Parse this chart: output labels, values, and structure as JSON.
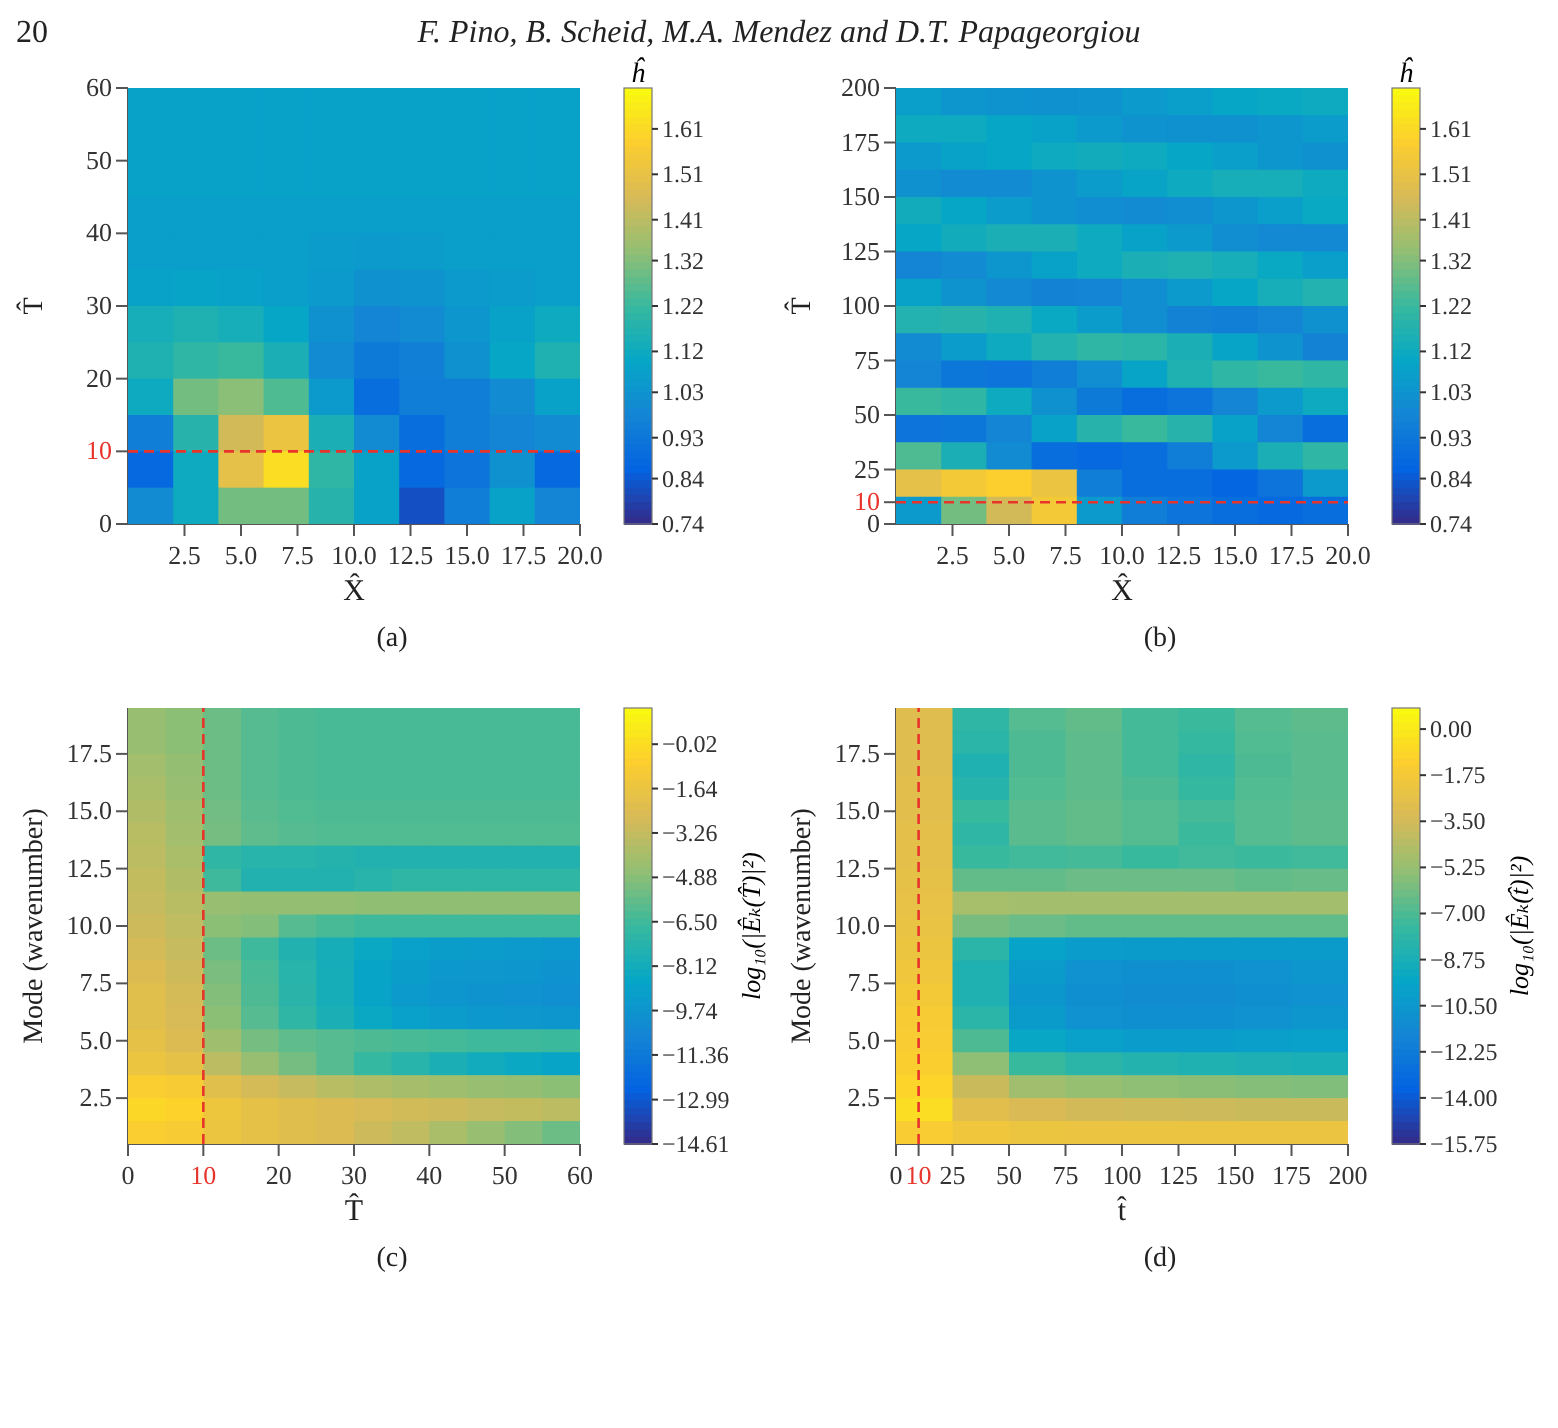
{
  "chart_data": [
    {
      "type": "heatmap",
      "annotations": [
        "20",
        "F. Pino, B. Scheid, M.A. Mendez and D.T. Papageorgiou",
        "(a)"
      ],
      "xlabel": "X̂",
      "ylabel": "T̂",
      "clabel": "ĥ",
      "xlim": [
        0,
        20
      ],
      "xticks": [
        2.5,
        {
          "value": 5,
          "label": "5.0"
        },
        7.5,
        {
          "value": 10,
          "label": "10.0"
        },
        12.5,
        {
          "value": 15,
          "label": "15.0"
        },
        17.5,
        {
          "value": 20,
          "label": "20.0"
        }
      ],
      "ylim": [
        0,
        60
      ],
      "yticks": [
        0,
        10,
        20,
        30,
        40,
        50,
        60
      ],
      "clim": [
        0.74,
        1.7
      ],
      "cticks": [
        0.74,
        0.84,
        0.93,
        1.03,
        1.12,
        1.22,
        1.32,
        1.41,
        1.51,
        1.61
      ],
      "ref_lines": [
        {
          "axis": "y",
          "value": 10,
          "color": "#e8342b",
          "line_style": "dashed"
        }
      ],
      "cells": [
        [
          1.08,
          1.08,
          1.08,
          1.08,
          1.08,
          1.08,
          1.08,
          1.08,
          1.08,
          1.08
        ],
        [
          1.08,
          1.08,
          1.08,
          1.08,
          1.08,
          1.08,
          1.08,
          1.08,
          1.08,
          1.08
        ],
        [
          1.08,
          1.08,
          1.08,
          1.08,
          1.08,
          1.08,
          1.08,
          1.08,
          1.08,
          1.08
        ],
        [
          1.07,
          1.07,
          1.07,
          1.07,
          1.07,
          1.07,
          1.07,
          1.07,
          1.07,
          1.07
        ],
        [
          1.07,
          1.07,
          1.07,
          1.07,
          1.06,
          1.05,
          1.06,
          1.07,
          1.07,
          1.07
        ],
        [
          1.08,
          1.09,
          1.08,
          1.07,
          1.05,
          1.02,
          1.03,
          1.05,
          1.06,
          1.07
        ],
        [
          1.14,
          1.16,
          1.14,
          1.1,
          1.02,
          0.98,
          1.0,
          1.04,
          1.08,
          1.12
        ],
        [
          1.16,
          1.2,
          1.22,
          1.15,
          1.0,
          0.94,
          0.96,
          1.02,
          1.1,
          1.16
        ],
        [
          1.12,
          1.3,
          1.33,
          1.25,
          1.05,
          0.9,
          0.95,
          0.95,
          1.0,
          1.08
        ],
        [
          0.95,
          1.18,
          1.45,
          1.52,
          1.15,
          1.0,
          0.9,
          0.95,
          0.98,
          1.0
        ],
        [
          0.88,
          1.12,
          1.5,
          1.62,
          1.2,
          1.08,
          0.88,
          0.92,
          1.02,
          0.88
        ],
        [
          1.0,
          1.12,
          1.3,
          1.3,
          1.18,
          1.08,
          0.82,
          0.95,
          1.08,
          0.98
        ]
      ]
    },
    {
      "type": "heatmap",
      "annotations": [
        "(b)"
      ],
      "xlabel": "X̂",
      "ylabel": "T̂",
      "clabel": "ĥ",
      "xlim": [
        0,
        20
      ],
      "xticks": [
        2.5,
        {
          "value": 5,
          "label": "5.0"
        },
        7.5,
        {
          "value": 10,
          "label": "10.0"
        },
        12.5,
        {
          "value": 15,
          "label": "15.0"
        },
        17.5,
        {
          "value": 20,
          "label": "20.0"
        }
      ],
      "ylim": [
        0,
        200
      ],
      "yticks": [
        0,
        10,
        25,
        50,
        75,
        100,
        125,
        150,
        175,
        200
      ],
      "clim": [
        0.74,
        1.7
      ],
      "cticks": [
        0.74,
        0.84,
        0.93,
        1.03,
        1.12,
        1.22,
        1.32,
        1.41,
        1.51,
        1.61
      ],
      "ref_lines": [
        {
          "axis": "y",
          "value": 10,
          "color": "#e8342b",
          "line_style": "dashed"
        }
      ],
      "cells": [
        [
          1.07,
          1.04,
          1.03,
          1.02,
          1.03,
          1.05,
          1.07,
          1.1,
          1.11,
          1.12
        ],
        [
          1.12,
          1.12,
          1.1,
          1.08,
          1.05,
          1.03,
          1.02,
          1.02,
          1.04,
          1.06
        ],
        [
          1.05,
          1.08,
          1.1,
          1.12,
          1.13,
          1.12,
          1.1,
          1.07,
          1.04,
          1.02
        ],
        [
          1.02,
          1.0,
          1.0,
          1.03,
          1.06,
          1.09,
          1.12,
          1.14,
          1.14,
          1.12
        ],
        [
          1.13,
          1.1,
          1.06,
          1.03,
          1.01,
          1.0,
          1.01,
          1.04,
          1.07,
          1.11
        ],
        [
          1.1,
          1.13,
          1.15,
          1.15,
          1.12,
          1.08,
          1.05,
          1.01,
          0.99,
          0.99
        ],
        [
          0.98,
          1.0,
          1.04,
          1.08,
          1.12,
          1.15,
          1.16,
          1.14,
          1.11,
          1.07
        ],
        [
          1.08,
          1.03,
          0.99,
          0.97,
          0.98,
          1.01,
          1.05,
          1.1,
          1.14,
          1.17
        ],
        [
          1.17,
          1.18,
          1.16,
          1.11,
          1.06,
          1.01,
          0.97,
          0.96,
          0.98,
          1.02
        ],
        [
          1.0,
          1.06,
          1.12,
          1.17,
          1.2,
          1.19,
          1.15,
          1.09,
          1.03,
          0.97
        ],
        [
          0.98,
          0.93,
          0.92,
          0.95,
          1.01,
          1.09,
          1.16,
          1.2,
          1.22,
          1.2
        ],
        [
          1.22,
          1.2,
          1.12,
          1.02,
          0.94,
          0.9,
          0.92,
          0.98,
          1.05,
          1.12
        ],
        [
          0.92,
          0.93,
          0.98,
          1.08,
          1.18,
          1.22,
          1.18,
          1.08,
          0.98,
          0.9
        ],
        [
          1.25,
          1.15,
          1.0,
          0.9,
          0.88,
          0.9,
          0.95,
          1.05,
          1.15,
          1.2
        ],
        [
          1.5,
          1.55,
          1.58,
          1.52,
          0.95,
          0.9,
          0.9,
          0.87,
          0.92,
          1.05
        ],
        [
          1.05,
          1.3,
          1.45,
          1.55,
          1.05,
          0.95,
          0.92,
          0.9,
          0.88,
          0.9
        ]
      ]
    },
    {
      "type": "heatmap",
      "annotations": [
        "(c)"
      ],
      "xlabel": "T̂",
      "ylabel": "Mode (wavenumber)",
      "clabel": "log₁₀(|Êₖ(T̂)|²)",
      "xlim": [
        0,
        60
      ],
      "xticks": [
        0,
        10,
        20,
        30,
        40,
        50,
        60
      ],
      "ylim": [
        0.5,
        19.5
      ],
      "yticks": [
        2.5,
        {
          "value": 5,
          "label": "5.0"
        },
        7.5,
        {
          "value": 10,
          "label": "10.0"
        },
        12.5,
        {
          "value": 15,
          "label": "15.0"
        },
        17.5
      ],
      "clim": [
        -14.61,
        1.3
      ],
      "cticks": [
        {
          "value": -0.02,
          "label": "−0.02"
        },
        {
          "value": -1.64,
          "label": "−1.64"
        },
        {
          "value": -3.26,
          "label": "−3.26"
        },
        {
          "value": -4.88,
          "label": "−4.88"
        },
        {
          "value": -6.5,
          "label": "−6.50"
        },
        {
          "value": -8.12,
          "label": "−8.12"
        },
        {
          "value": -9.74,
          "label": "−9.74"
        },
        {
          "value": -11.36,
          "label": "−11.36"
        },
        {
          "value": -12.99,
          "label": "−12.99"
        },
        {
          "value": -14.61,
          "label": "−14.61"
        }
      ],
      "ref_lines": [
        {
          "axis": "x",
          "value": 10,
          "color": "#e8342b",
          "line_style": "dashed"
        }
      ],
      "cells": [
        [
          -4.5,
          -4.8,
          -5.5,
          -6.0,
          -6.2,
          -6.3,
          -6.3,
          -6.3,
          -6.3,
          -6.3,
          -6.3,
          -6.3
        ],
        [
          -4.5,
          -4.8,
          -5.5,
          -6.0,
          -6.2,
          -6.3,
          -6.3,
          -6.3,
          -6.3,
          -6.3,
          -6.3,
          -6.3
        ],
        [
          -4.2,
          -4.6,
          -5.5,
          -6.0,
          -6.2,
          -6.3,
          -6.3,
          -6.3,
          -6.3,
          -6.3,
          -6.3,
          -6.3
        ],
        [
          -4.0,
          -4.5,
          -5.5,
          -6.0,
          -6.2,
          -6.3,
          -6.3,
          -6.3,
          -6.3,
          -6.3,
          -6.3,
          -6.3
        ],
        [
          -3.8,
          -4.3,
          -5.4,
          -5.9,
          -6.1,
          -6.2,
          -6.2,
          -6.2,
          -6.2,
          -6.2,
          -6.2,
          -6.2
        ],
        [
          -3.6,
          -4.2,
          -5.3,
          -5.8,
          -6.0,
          -6.1,
          -6.1,
          -6.1,
          -6.1,
          -6.1,
          -6.1,
          -6.1
        ],
        [
          -3.5,
          -4.0,
          -7.0,
          -7.3,
          -7.3,
          -7.4,
          -7.5,
          -7.5,
          -7.5,
          -7.5,
          -7.5,
          -7.5
        ],
        [
          -3.3,
          -3.8,
          -6.5,
          -7.5,
          -7.5,
          -7.5,
          -7.3,
          -7.0,
          -7.0,
          -7.0,
          -7.0,
          -7.0
        ],
        [
          -3.2,
          -3.6,
          -4.5,
          -4.6,
          -4.6,
          -4.6,
          -4.7,
          -4.7,
          -4.7,
          -4.7,
          -4.7,
          -4.7
        ],
        [
          -3.0,
          -3.4,
          -4.8,
          -5.0,
          -6.0,
          -6.3,
          -6.5,
          -6.5,
          -6.5,
          -6.5,
          -6.5,
          -6.5
        ],
        [
          -2.8,
          -3.2,
          -5.5,
          -6.5,
          -7.5,
          -8.0,
          -8.5,
          -9.0,
          -9.2,
          -9.3,
          -9.4,
          -9.5
        ],
        [
          -2.5,
          -3.0,
          -5.2,
          -6.3,
          -7.3,
          -8.0,
          -8.8,
          -9.2,
          -9.5,
          -9.6,
          -9.7,
          -9.8
        ],
        [
          -2.2,
          -2.8,
          -5.0,
          -6.2,
          -7.2,
          -8.0,
          -8.8,
          -9.4,
          -9.7,
          -9.8,
          -9.9,
          -10.0
        ],
        [
          -2.2,
          -2.7,
          -4.8,
          -6.0,
          -7.0,
          -7.8,
          -8.5,
          -9.0,
          -9.3,
          -9.5,
          -9.6,
          -9.7
        ],
        [
          -2.0,
          -2.5,
          -4.3,
          -5.3,
          -5.8,
          -6.0,
          -6.2,
          -6.3,
          -6.4,
          -6.5,
          -6.5,
          -6.6
        ],
        [
          -1.6,
          -2.0,
          -3.5,
          -4.5,
          -5.3,
          -6.0,
          -6.8,
          -7.3,
          -7.8,
          -8.2,
          -8.5,
          -8.8
        ],
        [
          -0.8,
          -1.0,
          -2.2,
          -2.8,
          -3.2,
          -3.6,
          -3.9,
          -4.1,
          -4.3,
          -4.5,
          -4.6,
          -4.8
        ],
        [
          -0.3,
          -0.5,
          -1.5,
          -2.0,
          -2.3,
          -2.5,
          -2.7,
          -2.9,
          -3.0,
          -3.2,
          -3.3,
          -3.5
        ],
        [
          -0.8,
          -1.0,
          -1.6,
          -2.0,
          -2.3,
          -2.5,
          -3.0,
          -3.4,
          -4.0,
          -4.5,
          -5.0,
          -5.5
        ]
      ]
    },
    {
      "type": "heatmap",
      "annotations": [
        "(d)"
      ],
      "xlabel": "t̂",
      "ylabel": "Mode (wavenumber)",
      "clabel": "log₁₀(|Êₖ(t̂)|²)",
      "xlim": [
        0,
        200
      ],
      "xticks": [
        0,
        10,
        25,
        50,
        75,
        100,
        125,
        150,
        175,
        200
      ],
      "ylim": [
        0.5,
        19.5
      ],
      "yticks": [
        2.5,
        {
          "value": 5,
          "label": "5.0"
        },
        7.5,
        {
          "value": 10,
          "label": "10.0"
        },
        12.5,
        {
          "value": 15,
          "label": "15.0"
        },
        17.5
      ],
      "clim": [
        -15.75,
        0.8
      ],
      "cticks": [
        {
          "value": 0,
          "label": "0.00"
        },
        {
          "value": -1.75,
          "label": "−1.75"
        },
        {
          "value": -3.5,
          "label": "−3.50"
        },
        {
          "value": -5.25,
          "label": "−5.25"
        },
        {
          "value": -7,
          "label": "−7.00"
        },
        {
          "value": -8.75,
          "label": "−8.75"
        },
        {
          "value": -10.5,
          "label": "−10.50"
        },
        {
          "value": -12.25,
          "label": "−12.25"
        },
        {
          "value": -14,
          "label": "−14.00"
        },
        {
          "value": -15.75,
          "label": "−15.75"
        }
      ],
      "ref_lines": [
        {
          "axis": "x",
          "value": 10,
          "color": "#e8342b",
          "line_style": "dashed"
        }
      ],
      "cells": [
        [
          -3.0,
          -7.8,
          -6.8,
          -6.5,
          -7.2,
          -7.4,
          -6.8,
          -6.6
        ],
        [
          -3.0,
          -8.0,
          -7.0,
          -6.6,
          -7.2,
          -7.6,
          -6.9,
          -6.7
        ],
        [
          -3.0,
          -8.5,
          -7.0,
          -6.6,
          -7.2,
          -7.8,
          -7.0,
          -6.7
        ],
        [
          -2.8,
          -8.2,
          -6.9,
          -6.6,
          -7.0,
          -7.6,
          -6.9,
          -6.7
        ],
        [
          -2.8,
          -7.5,
          -6.7,
          -6.5,
          -6.8,
          -7.2,
          -6.8,
          -6.6
        ],
        [
          -2.7,
          -7.8,
          -6.7,
          -6.5,
          -6.8,
          -7.4,
          -6.8,
          -6.6
        ],
        [
          -2.7,
          -7.5,
          -7.3,
          -7.2,
          -7.5,
          -7.3,
          -7.4,
          -7.3
        ],
        [
          -2.6,
          -6.5,
          -6.5,
          -6.3,
          -6.3,
          -6.3,
          -6.5,
          -6.4
        ],
        [
          -2.5,
          -4.8,
          -4.9,
          -4.9,
          -4.9,
          -4.9,
          -4.9,
          -4.9
        ],
        [
          -2.4,
          -6.0,
          -6.3,
          -6.5,
          -6.5,
          -6.5,
          -6.5,
          -6.5
        ],
        [
          -2.2,
          -8.0,
          -9.8,
          -10.2,
          -10.3,
          -10.3,
          -10.3,
          -10.3
        ],
        [
          -2.0,
          -8.5,
          -10.3,
          -10.8,
          -11.0,
          -11.0,
          -10.8,
          -10.6
        ],
        [
          -1.8,
          -8.5,
          -10.5,
          -11.0,
          -11.2,
          -11.2,
          -11.0,
          -10.8
        ],
        [
          -1.6,
          -8.0,
          -10.3,
          -10.8,
          -11.0,
          -11.0,
          -10.8,
          -10.6
        ],
        [
          -1.5,
          -7.0,
          -9.5,
          -10.0,
          -10.2,
          -10.2,
          -10.1,
          -10.0
        ],
        [
          -1.3,
          -5.5,
          -7.5,
          -8.0,
          -8.3,
          -8.5,
          -8.6,
          -8.7
        ],
        [
          -1.0,
          -3.8,
          -5.0,
          -5.3,
          -5.5,
          -5.6,
          -5.7,
          -5.8
        ],
        [
          -0.6,
          -2.8,
          -3.3,
          -3.5,
          -3.6,
          -3.7,
          -3.8,
          -3.8
        ],
        [
          -1.5,
          -2.0,
          -2.2,
          -2.3,
          -2.3,
          -2.3,
          -2.3,
          -2.3
        ]
      ]
    }
  ]
}
